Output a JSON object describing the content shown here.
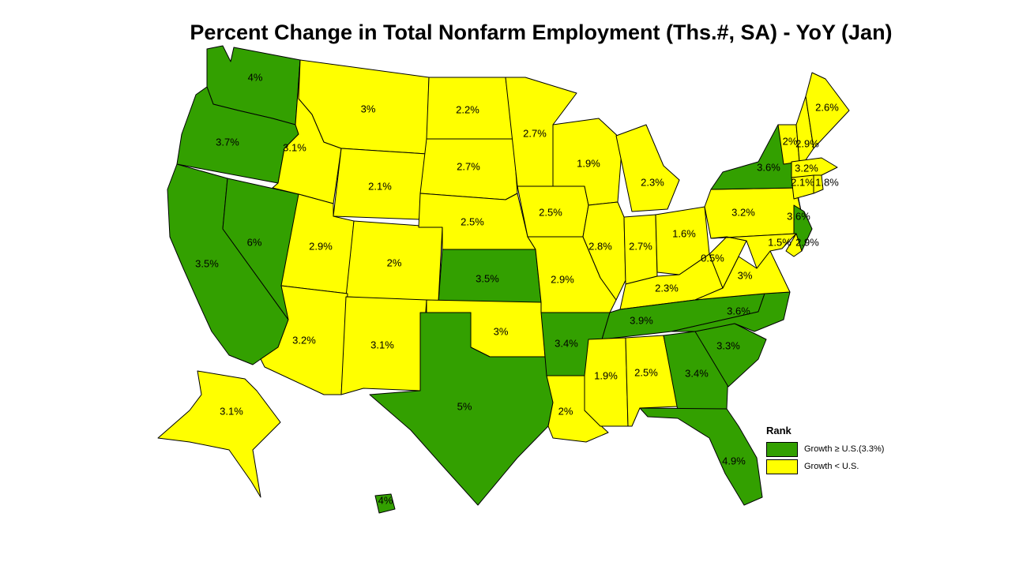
{
  "title": "Percent Change in Total Nonfarm Employment (Ths.#, SA) - YoY (Jan)",
  "colors": {
    "above": "#33a000",
    "below": "#ffff00",
    "border": "#000000"
  },
  "legend": {
    "title": "Rank",
    "items": [
      {
        "key": "above",
        "label": "Growth ≥ U.S.(3.3%)"
      },
      {
        "key": "below",
        "label": "Growth < U.S."
      }
    ]
  },
  "states": {
    "WA": {
      "value": "4%",
      "rank": "above"
    },
    "OR": {
      "value": "3.7%",
      "rank": "above"
    },
    "CA": {
      "value": "3.5%",
      "rank": "above"
    },
    "NV": {
      "value": "6%",
      "rank": "above"
    },
    "ID": {
      "value": "3.1%",
      "rank": "below"
    },
    "MT": {
      "value": "3%",
      "rank": "below"
    },
    "WY": {
      "value": "2.1%",
      "rank": "below"
    },
    "UT": {
      "value": "2.9%",
      "rank": "below"
    },
    "CO": {
      "value": "2%",
      "rank": "below"
    },
    "AZ": {
      "value": "3.2%",
      "rank": "below"
    },
    "NM": {
      "value": "3.1%",
      "rank": "below"
    },
    "ND": {
      "value": "2.2%",
      "rank": "below"
    },
    "SD": {
      "value": "2.7%",
      "rank": "below"
    },
    "NE": {
      "value": "2.5%",
      "rank": "below"
    },
    "KS": {
      "value": "3.5%",
      "rank": "above"
    },
    "OK": {
      "value": "3%",
      "rank": "below"
    },
    "TX": {
      "value": "5%",
      "rank": "above"
    },
    "MN": {
      "value": "2.7%",
      "rank": "below"
    },
    "IA": {
      "value": "2.5%",
      "rank": "below"
    },
    "MO": {
      "value": "2.9%",
      "rank": "below"
    },
    "AR": {
      "value": "3.4%",
      "rank": "above"
    },
    "LA": {
      "value": "2%",
      "rank": "below"
    },
    "WI": {
      "value": "1.9%",
      "rank": "below"
    },
    "IL": {
      "value": "2.8%",
      "rank": "below"
    },
    "MI": {
      "value": "2.3%",
      "rank": "below"
    },
    "IN": {
      "value": "2.7%",
      "rank": "below"
    },
    "OH": {
      "value": "1.6%",
      "rank": "below"
    },
    "KY": {
      "value": "2.3%",
      "rank": "below"
    },
    "TN": {
      "value": "3.9%",
      "rank": "above"
    },
    "MS": {
      "value": "1.9%",
      "rank": "below"
    },
    "AL": {
      "value": "2.5%",
      "rank": "below"
    },
    "GA": {
      "value": "3.4%",
      "rank": "above"
    },
    "FL": {
      "value": "4.9%",
      "rank": "above"
    },
    "SC": {
      "value": "3.3%",
      "rank": "above"
    },
    "NC": {
      "value": "3.6%",
      "rank": "above"
    },
    "VA": {
      "value": "3%",
      "rank": "below"
    },
    "WV": {
      "value": "0.5%",
      "rank": "below"
    },
    "PA": {
      "value": "3.2%",
      "rank": "below"
    },
    "NY": {
      "value": "3.6%",
      "rank": "above"
    },
    "NJ": {
      "value": "3.6%",
      "rank": "above"
    },
    "DE": {
      "value": "2.9%",
      "rank": "below"
    },
    "MD": {
      "value": "1.5%",
      "rank": "below"
    },
    "VT": {
      "value": "2%",
      "rank": "below"
    },
    "NH": {
      "value": "2.9%",
      "rank": "below"
    },
    "ME": {
      "value": "2.6%",
      "rank": "below"
    },
    "MA": {
      "value": "3.2%",
      "rank": "below"
    },
    "CT": {
      "value": "2.1%",
      "rank": "below"
    },
    "RI": {
      "value": "1.8%",
      "rank": "below"
    },
    "AK": {
      "value": "3.1%",
      "rank": "below"
    },
    "HI": {
      "value": "4%",
      "rank": "above"
    }
  }
}
